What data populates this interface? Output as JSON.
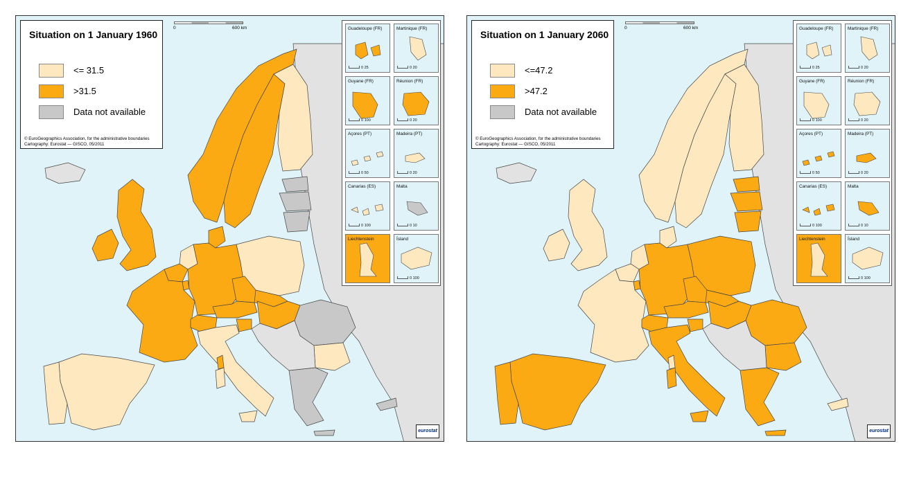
{
  "colors": {
    "sea": "#dff3f8",
    "low": "#fde8c0",
    "high": "#fbaa14",
    "na": "#c8c8c8",
    "outside": "#e2e2e2"
  },
  "scale": {
    "zero": "0",
    "max": "600 km"
  },
  "credit_line1": "© EuroGeographics Association, for the administrative boundaries",
  "logo": "eurostat",
  "insets": [
    {
      "name": "Guadeloupe (FR)",
      "scale": "0   25"
    },
    {
      "name": "Martinique (FR)",
      "scale": "0   20"
    },
    {
      "name": "Guyane (FR)",
      "scale": "0   100"
    },
    {
      "name": "Réunion (FR)",
      "scale": "0   20"
    },
    {
      "name": "Açores (PT)",
      "scale": "0   50"
    },
    {
      "name": "Madeira (PT)",
      "scale": "0   20"
    },
    {
      "name": "Canarias (ES)",
      "scale": "0   100"
    },
    {
      "name": "Malta",
      "scale": "0   10"
    },
    {
      "name": "Liechtenstein",
      "scale": ""
    },
    {
      "name": "Ísland",
      "scale": "0   100"
    }
  ],
  "maps": [
    {
      "title": "Situation on 1 January 1960",
      "legend": {
        "low": "<= 31.5",
        "high": ">31.5",
        "na": "Data not available"
      },
      "credit_line2": "Cartography: Eurostat — GISCO, 05/2011",
      "inset_classes": [
        "high",
        "low",
        "high",
        "high",
        "low",
        "low",
        "low",
        "na",
        "high",
        "low"
      ],
      "countries": {
        "IS": "outside",
        "NO": "high",
        "SE": "high",
        "FI": "low",
        "UK": "high",
        "IE": "high",
        "DK": "high",
        "NL": "low",
        "BE": "high",
        "LU": "high",
        "FR": "high",
        "DE": "high",
        "PL": "low",
        "CZ": "high",
        "SK": "high",
        "AT": "high",
        "HU": "high",
        "CH": "high",
        "IT": "low",
        "SI": "high",
        "ES": "low",
        "PT": "low",
        "RO": "na",
        "BG": "low",
        "GR": "na",
        "EE": "na",
        "LV": "na",
        "LT": "na",
        "BALKANS": "outside",
        "EAST": "outside",
        "CY": "na"
      }
    },
    {
      "title": "Situation on 1 January 2060",
      "legend": {
        "low": "<=47.2",
        "high": ">47.2",
        "na": "Data not available"
      },
      "credit_line2": "Cartography: Eurostat — GISCO, 05/2011",
      "inset_classes": [
        "low",
        "low",
        "low",
        "low",
        "high",
        "high",
        "high",
        "high",
        "high",
        "low"
      ],
      "countries": {
        "IS": "outside",
        "NO": "low",
        "SE": "low",
        "FI": "low",
        "UK": "low",
        "IE": "low",
        "DK": "low",
        "NL": "low",
        "BE": "low",
        "LU": "high",
        "FR": "low",
        "DE": "high",
        "PL": "high",
        "CZ": "high",
        "SK": "high",
        "AT": "high",
        "HU": "high",
        "CH": "high",
        "IT": "high",
        "SI": "high",
        "ES": "high",
        "PT": "high",
        "RO": "high",
        "BG": "high",
        "GR": "high",
        "EE": "high",
        "LV": "high",
        "LT": "high",
        "BALKANS": "outside",
        "EAST": "outside",
        "CY": "low"
      }
    }
  ]
}
